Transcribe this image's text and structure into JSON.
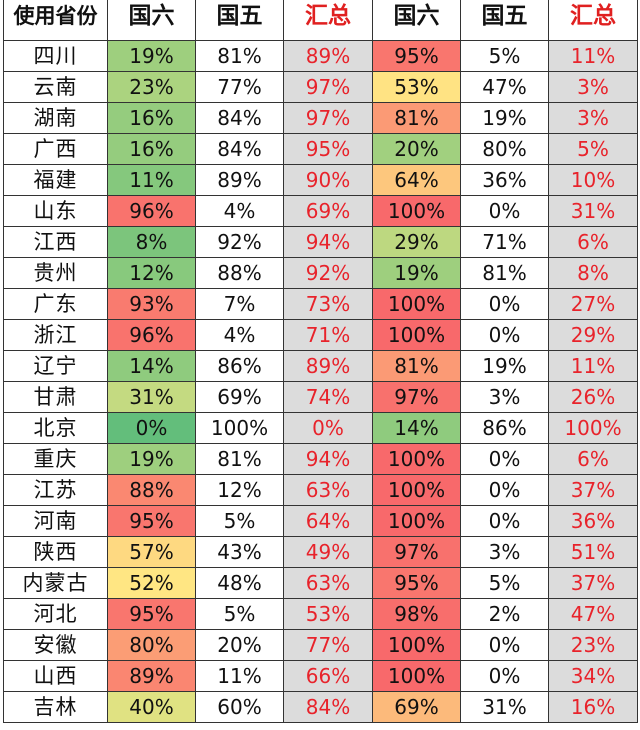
{
  "header": {
    "province": "使用省份",
    "col1": "国六",
    "col2": "国五",
    "col3": "汇总",
    "col4": "国六",
    "col5": "国五",
    "col6": "汇总"
  },
  "colors": {
    "sum_text": "#e8232b",
    "sum_bg": "#dcdcdc",
    "scale_low": "#63be7b",
    "scale_mid": "#ffeb84",
    "scale_high": "#f8696b"
  },
  "rows": [
    {
      "province": "四川",
      "a_g6": "19%",
      "a_g5": "81%",
      "a_sum": "89%",
      "b_g6": "95%",
      "b_g5": "5%",
      "b_sum": "11%"
    },
    {
      "province": "云南",
      "a_g6": "23%",
      "a_g5": "77%",
      "a_sum": "97%",
      "b_g6": "53%",
      "b_g5": "47%",
      "b_sum": "3%"
    },
    {
      "province": "湖南",
      "a_g6": "16%",
      "a_g5": "84%",
      "a_sum": "97%",
      "b_g6": "81%",
      "b_g5": "19%",
      "b_sum": "3%"
    },
    {
      "province": "广西",
      "a_g6": "16%",
      "a_g5": "84%",
      "a_sum": "95%",
      "b_g6": "20%",
      "b_g5": "80%",
      "b_sum": "5%"
    },
    {
      "province": "福建",
      "a_g6": "11%",
      "a_g5": "89%",
      "a_sum": "90%",
      "b_g6": "64%",
      "b_g5": "36%",
      "b_sum": "10%"
    },
    {
      "province": "山东",
      "a_g6": "96%",
      "a_g5": "4%",
      "a_sum": "69%",
      "b_g6": "100%",
      "b_g5": "0%",
      "b_sum": "31%"
    },
    {
      "province": "江西",
      "a_g6": "8%",
      "a_g5": "92%",
      "a_sum": "94%",
      "b_g6": "29%",
      "b_g5": "71%",
      "b_sum": "6%"
    },
    {
      "province": "贵州",
      "a_g6": "12%",
      "a_g5": "88%",
      "a_sum": "92%",
      "b_g6": "19%",
      "b_g5": "81%",
      "b_sum": "8%"
    },
    {
      "province": "广东",
      "a_g6": "93%",
      "a_g5": "7%",
      "a_sum": "73%",
      "b_g6": "100%",
      "b_g5": "0%",
      "b_sum": "27%"
    },
    {
      "province": "浙江",
      "a_g6": "96%",
      "a_g5": "4%",
      "a_sum": "71%",
      "b_g6": "100%",
      "b_g5": "0%",
      "b_sum": "29%"
    },
    {
      "province": "辽宁",
      "a_g6": "14%",
      "a_g5": "86%",
      "a_sum": "89%",
      "b_g6": "81%",
      "b_g5": "19%",
      "b_sum": "11%"
    },
    {
      "province": "甘肃",
      "a_g6": "31%",
      "a_g5": "69%",
      "a_sum": "74%",
      "b_g6": "97%",
      "b_g5": "3%",
      "b_sum": "26%"
    },
    {
      "province": "北京",
      "a_g6": "0%",
      "a_g5": "100%",
      "a_sum": "0%",
      "b_g6": "14%",
      "b_g5": "86%",
      "b_sum": "100%"
    },
    {
      "province": "重庆",
      "a_g6": "19%",
      "a_g5": "81%",
      "a_sum": "94%",
      "b_g6": "100%",
      "b_g5": "0%",
      "b_sum": "6%"
    },
    {
      "province": "江苏",
      "a_g6": "88%",
      "a_g5": "12%",
      "a_sum": "63%",
      "b_g6": "100%",
      "b_g5": "0%",
      "b_sum": "37%"
    },
    {
      "province": "河南",
      "a_g6": "95%",
      "a_g5": "5%",
      "a_sum": "64%",
      "b_g6": "100%",
      "b_g5": "0%",
      "b_sum": "36%"
    },
    {
      "province": "陕西",
      "a_g6": "57%",
      "a_g5": "43%",
      "a_sum": "49%",
      "b_g6": "97%",
      "b_g5": "3%",
      "b_sum": "51%"
    },
    {
      "province": "内蒙古",
      "a_g6": "52%",
      "a_g5": "48%",
      "a_sum": "63%",
      "b_g6": "95%",
      "b_g5": "5%",
      "b_sum": "37%"
    },
    {
      "province": "河北",
      "a_g6": "95%",
      "a_g5": "5%",
      "a_sum": "53%",
      "b_g6": "98%",
      "b_g5": "2%",
      "b_sum": "47%"
    },
    {
      "province": "安徽",
      "a_g6": "80%",
      "a_g5": "20%",
      "a_sum": "77%",
      "b_g6": "100%",
      "b_g5": "0%",
      "b_sum": "23%"
    },
    {
      "province": "山西",
      "a_g6": "89%",
      "a_g5": "11%",
      "a_sum": "66%",
      "b_g6": "100%",
      "b_g5": "0%",
      "b_sum": "34%"
    },
    {
      "province": "吉林",
      "a_g6": "40%",
      "a_g5": "60%",
      "a_sum": "84%",
      "b_g6": "69%",
      "b_g5": "31%",
      "b_sum": "16%"
    }
  ]
}
